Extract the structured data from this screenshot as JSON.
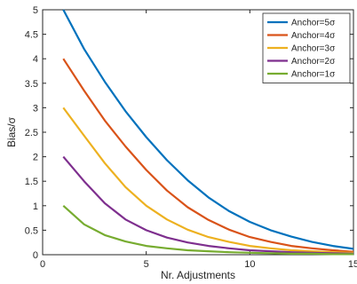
{
  "chart_data": {
    "type": "line",
    "xlabel": "Nr. Adjustments",
    "ylabel": "Bias/σ",
    "xlim": [
      0,
      15
    ],
    "ylim": [
      0,
      5
    ],
    "x_ticks": [
      "0",
      "5",
      "10",
      "15"
    ],
    "y_ticks": [
      "0",
      "0.5",
      "1",
      "1.5",
      "2",
      "2.5",
      "3",
      "3.5",
      "4",
      "4.5",
      "5"
    ],
    "grid": false,
    "legend_position": "top-right",
    "x": [
      1,
      2,
      3,
      4,
      5,
      6,
      7,
      8,
      9,
      10,
      11,
      12,
      13,
      14,
      15
    ],
    "series": [
      {
        "name": "Anchor=5σ",
        "color": "#0072BD",
        "values": [
          5.0,
          4.2,
          3.53,
          2.93,
          2.4,
          1.93,
          1.52,
          1.17,
          0.89,
          0.67,
          0.5,
          0.37,
          0.26,
          0.18,
          0.12
        ]
      },
      {
        "name": "Anchor=4σ",
        "color": "#D95319",
        "values": [
          4.0,
          3.35,
          2.74,
          2.21,
          1.73,
          1.31,
          0.97,
          0.71,
          0.51,
          0.36,
          0.26,
          0.18,
          0.13,
          0.09,
          0.06
        ]
      },
      {
        "name": "Anchor=3σ",
        "color": "#EDB120",
        "values": [
          3.0,
          2.43,
          1.87,
          1.38,
          1.0,
          0.72,
          0.51,
          0.36,
          0.26,
          0.18,
          0.13,
          0.09,
          0.07,
          0.05,
          0.04
        ]
      },
      {
        "name": "Anchor=2σ",
        "color": "#7E2F8E",
        "values": [
          2.0,
          1.5,
          1.05,
          0.72,
          0.5,
          0.35,
          0.25,
          0.18,
          0.13,
          0.09,
          0.07,
          0.05,
          0.04,
          0.03,
          0.02
        ]
      },
      {
        "name": "Anchor=1σ",
        "color": "#77AC30",
        "values": [
          1.0,
          0.62,
          0.4,
          0.27,
          0.18,
          0.13,
          0.09,
          0.07,
          0.05,
          0.04,
          0.03,
          0.02,
          0.02,
          0.01,
          0.01
        ]
      }
    ]
  }
}
